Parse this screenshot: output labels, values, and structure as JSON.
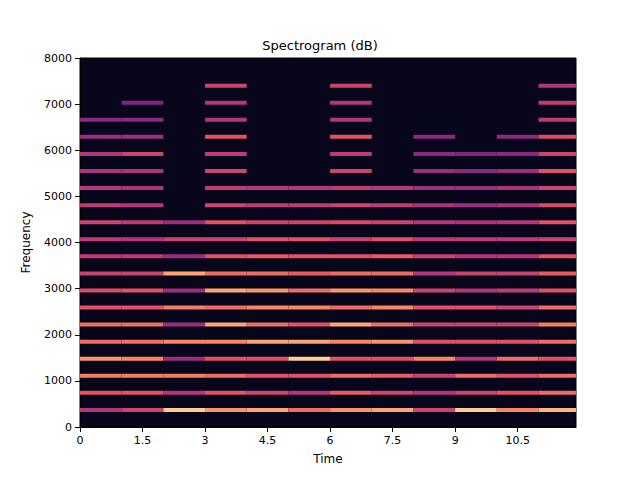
{
  "chart_data": {
    "type": "heatmap",
    "title": "Spectrogram (dB)",
    "x_label": "Time",
    "y_label": "Frequency",
    "xlim": [
      0,
      11.9
    ],
    "ylim": [
      0,
      8000
    ],
    "xticks": [
      0,
      1.5,
      3,
      4.5,
      6,
      7.5,
      9,
      10.5
    ],
    "yticks": [
      0,
      1000,
      2000,
      3000,
      4000,
      5000,
      6000,
      7000,
      8000
    ],
    "zlim": [
      -80,
      0
    ],
    "segments": [
      {
        "start": 0,
        "end": 1,
        "freqs": [
          370,
          740,
          1110,
          1480,
          1850,
          2220,
          2590,
          2960,
          3330,
          3700,
          4070,
          4440,
          4810,
          5180,
          5550,
          5920,
          6290,
          6660
        ],
        "levels": [
          -40,
          -30,
          -22,
          -18,
          -25,
          -25,
          -30,
          -32,
          -35,
          -38,
          -38,
          -35,
          -38,
          -40,
          -42,
          -40,
          -45,
          -48
        ]
      },
      {
        "start": 1,
        "end": 2,
        "freqs": [
          370,
          740,
          1110,
          1480,
          1850,
          2220,
          2590,
          2960,
          3330,
          3700,
          4070,
          4440,
          4810,
          5180,
          5550,
          5920,
          6290,
          6660,
          7030
        ],
        "levels": [
          -35,
          -30,
          -22,
          -20,
          -24,
          -25,
          -30,
          -30,
          -35,
          -38,
          -40,
          -38,
          -40,
          -42,
          -42,
          -35,
          -45,
          -48,
          -50
        ]
      },
      {
        "start": 2,
        "end": 3,
        "freqs": [
          370,
          740,
          1110,
          1480,
          1850,
          2220,
          2590,
          2960,
          3330,
          3700,
          4070,
          4440
        ],
        "levels": [
          -8,
          -40,
          -22,
          -45,
          -20,
          -45,
          -22,
          -45,
          -15,
          -45,
          -35,
          -45
        ]
      },
      {
        "start": 3,
        "end": 4,
        "freqs": [
          370,
          740,
          1110,
          1480,
          1850,
          2220,
          2590,
          2960,
          3330,
          3700,
          4070,
          4440,
          4810,
          5180,
          5550,
          5920,
          6290,
          6660,
          7030,
          7400
        ],
        "levels": [
          -18,
          -30,
          -25,
          -30,
          -20,
          -15,
          -25,
          -15,
          -25,
          -30,
          -35,
          -30,
          -35,
          -38,
          -35,
          -38,
          -30,
          -40,
          -40,
          -35
        ]
      },
      {
        "start": 4,
        "end": 5,
        "freqs": [
          370,
          740,
          1110,
          1480,
          1850,
          2220,
          2590,
          2960,
          3330,
          3700,
          4070,
          4440,
          4810,
          5180
        ],
        "levels": [
          -15,
          -35,
          -30,
          -30,
          -15,
          -25,
          -20,
          -18,
          -25,
          -28,
          -30,
          -35,
          -38,
          -40
        ]
      },
      {
        "start": 5,
        "end": 6,
        "freqs": [
          370,
          740,
          1110,
          1480,
          1850,
          2220,
          2590,
          2960,
          3330,
          3700,
          4070,
          4440,
          4810,
          5180
        ],
        "levels": [
          -25,
          -40,
          -30,
          -8,
          -15,
          -30,
          -20,
          -25,
          -28,
          -30,
          -30,
          -35,
          -38,
          -40
        ]
      },
      {
        "start": 6,
        "end": 7,
        "freqs": [
          370,
          740,
          1110,
          1480,
          1850,
          2220,
          2590,
          2960,
          3330,
          3700,
          4070,
          4440,
          4810,
          5180,
          5550,
          5920,
          6290,
          6660,
          7030,
          7400
        ],
        "levels": [
          -18,
          -28,
          -25,
          -30,
          -20,
          -15,
          -25,
          -18,
          -25,
          -30,
          -35,
          -32,
          -35,
          -38,
          -35,
          -38,
          -30,
          -40,
          -40,
          -35
        ]
      },
      {
        "start": 7,
        "end": 8,
        "freqs": [
          370,
          740,
          1110,
          1480,
          1850,
          2220,
          2590,
          2960,
          3330,
          3700,
          4070,
          4440,
          4810,
          5180
        ],
        "levels": [
          -15,
          -35,
          -28,
          -30,
          -18,
          -25,
          -20,
          -20,
          -25,
          -28,
          -30,
          -35,
          -38,
          -40
        ]
      },
      {
        "start": 8,
        "end": 9,
        "freqs": [
          370,
          740,
          1110,
          1480,
          1850,
          2220,
          2590,
          2960,
          3330,
          3700,
          4070,
          4440,
          4810,
          5180,
          5550,
          5920,
          6290
        ],
        "levels": [
          -35,
          -40,
          -35,
          -20,
          -30,
          -35,
          -30,
          -35,
          -40,
          -35,
          -38,
          -40,
          -42,
          -45,
          -45,
          -48,
          -48
        ]
      },
      {
        "start": 9,
        "end": 10,
        "freqs": [
          370,
          740,
          1110,
          1480,
          1850,
          2220,
          2590,
          2960,
          3330,
          3700,
          4070,
          4440,
          4810,
          5180,
          5550,
          5920
        ],
        "levels": [
          -8,
          -35,
          -25,
          -40,
          -30,
          -35,
          -30,
          -40,
          -35,
          -40,
          -38,
          -42,
          -45,
          -45,
          -48,
          -50
        ]
      },
      {
        "start": 10,
        "end": 11,
        "freqs": [
          370,
          740,
          1110,
          1480,
          1850,
          2220,
          2590,
          2960,
          3330,
          3700,
          4070,
          4440,
          4810,
          5180,
          5550,
          5920,
          6290
        ],
        "levels": [
          -20,
          -30,
          -30,
          -25,
          -30,
          -35,
          -35,
          -38,
          -35,
          -40,
          -38,
          -40,
          -42,
          -42,
          -45,
          -48,
          -48
        ]
      },
      {
        "start": 11,
        "end": 12,
        "freqs": [
          370,
          740,
          1110,
          1480,
          1850,
          2220,
          2590,
          2960,
          3330,
          3700,
          4070,
          4440,
          4810,
          5180,
          5550,
          5920,
          6290,
          6660,
          7030,
          7400
        ],
        "levels": [
          -12,
          -25,
          -25,
          -30,
          -25,
          -22,
          -25,
          -30,
          -28,
          -30,
          -35,
          -30,
          -32,
          -35,
          -30,
          -35,
          -32,
          -38,
          -38,
          -40
        ]
      }
    ]
  }
}
